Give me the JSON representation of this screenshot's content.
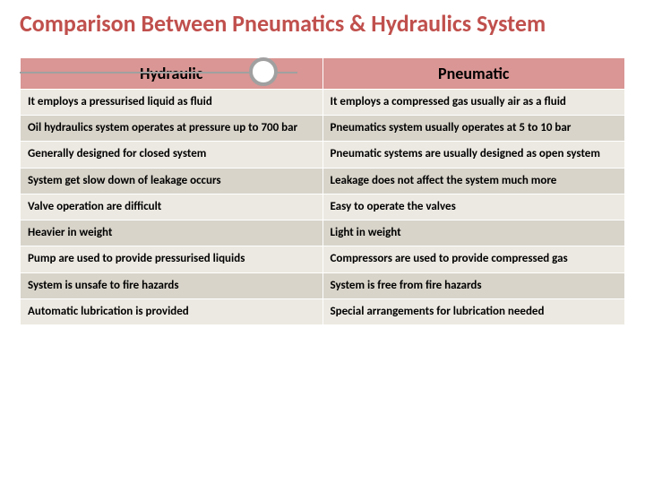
{
  "title": "Comparison Between Pneumatics & Hydraulics System",
  "title_color": "#c0504d",
  "underline_color": "#a0a0a0",
  "circle_border_color": "#a0a0a0",
  "table": {
    "header_bg": "#d99694",
    "row_bg_odd": "#ece9e2",
    "row_bg_even": "#d8d4ca",
    "border_color": "#ffffff",
    "header_fontsize": 18,
    "cell_fontsize": 13,
    "columns": [
      "Hydraulic",
      "Pneumatic"
    ],
    "rows": [
      [
        "It employs a pressurised liquid as fluid",
        "It employs a compressed gas usually air as a fluid"
      ],
      [
        "Oil hydraulics system operates at pressure up to 700 bar",
        "Pneumatics system usually operates at 5 to 10 bar"
      ],
      [
        "Generally designed for closed system",
        "Pneumatic systems are usually designed as open system"
      ],
      [
        "System get slow down of leakage occurs",
        "Leakage does not affect the system much more"
      ],
      [
        "Valve operation are difficult",
        "Easy to operate the valves"
      ],
      [
        "Heavier in weight",
        "Light in weight"
      ],
      [
        "Pump are used to provide pressurised liquids",
        "Compressors are used to provide compressed gas"
      ],
      [
        "System is unsafe to fire hazards",
        "System is free from fire hazards"
      ],
      [
        "Automatic lubrication is provided",
        "Special arrangements for lubrication needed"
      ]
    ]
  }
}
